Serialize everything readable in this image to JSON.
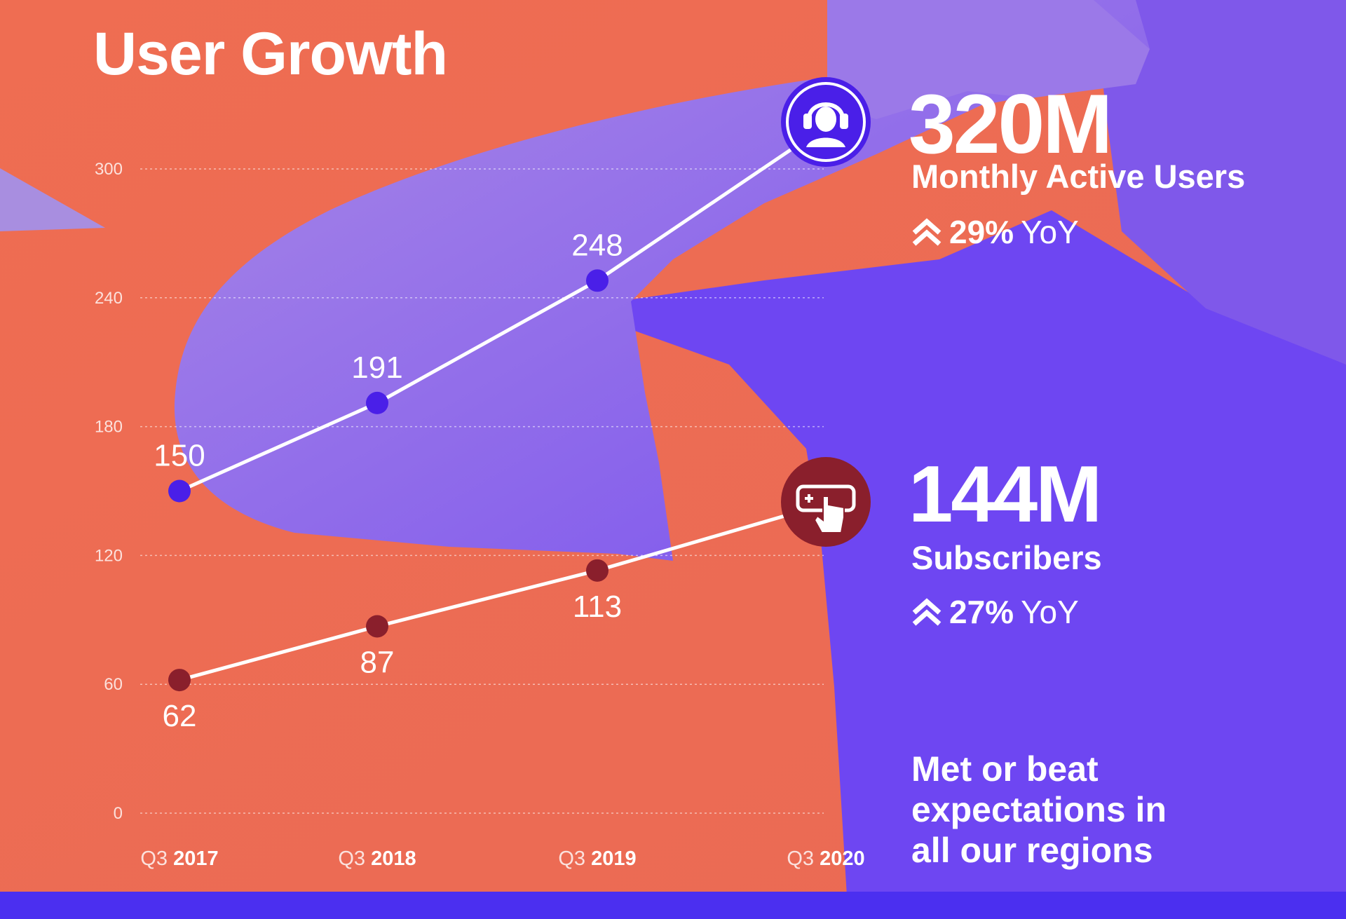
{
  "colors": {
    "background": "#ef6d52",
    "photo_overlay": "#7a4ef0",
    "mau_dot": "#4a1fe8",
    "sub_dot": "#8a1f2c",
    "line": "#ffffff",
    "text": "#ffffff"
  },
  "title": "User Growth",
  "mau": {
    "value": "320M",
    "label": "Monthly Active Users",
    "yoy_percent": "29%",
    "yoy_text": "YoY",
    "icon": "headphones-user-icon"
  },
  "subscribers": {
    "value": "144M",
    "label": "Subscribers",
    "yoy_percent": "27%",
    "yoy_text": "YoY",
    "icon": "tap-card-icon"
  },
  "footnote": "Met or beat expectations in all our regions",
  "chart_data": {
    "type": "line",
    "title": "User Growth",
    "xlabel": "",
    "ylabel": "",
    "ylim": [
      0,
      300
    ],
    "yticks": [
      "0",
      "60",
      "120",
      "180",
      "240",
      "300"
    ],
    "grid": true,
    "categories": [
      {
        "quarter": "Q3",
        "year": "2017"
      },
      {
        "quarter": "Q3",
        "year": "2018"
      },
      {
        "quarter": "Q3",
        "year": "2019"
      },
      {
        "quarter": "Q3",
        "year": "2020"
      }
    ],
    "series": [
      {
        "name": "Monthly Active Users",
        "values": [
          150,
          191,
          248,
          320
        ],
        "labels": [
          "150",
          "191",
          "248",
          ""
        ]
      },
      {
        "name": "Subscribers",
        "values": [
          62,
          87,
          113,
          144
        ],
        "labels": [
          "62",
          "87",
          "113",
          ""
        ]
      }
    ]
  }
}
